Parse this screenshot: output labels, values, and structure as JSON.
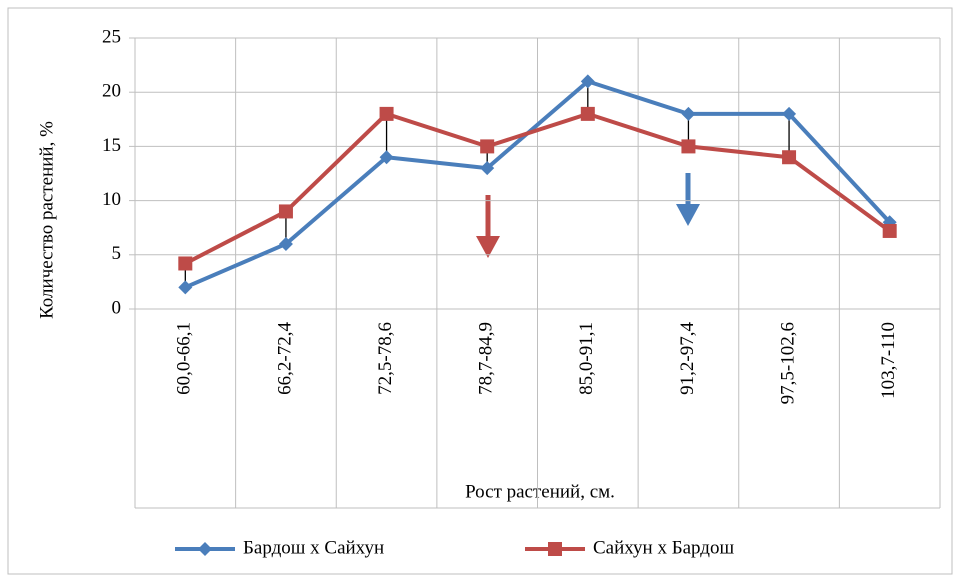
{
  "chart_data": {
    "type": "line",
    "y_label": "Количество растений,  %",
    "x_label": "Рост растений, см.",
    "categories": [
      "60,0-66,1",
      "66,2-72,4",
      "72,5-78,6",
      "78,7-84,9",
      "85,0-91,1",
      "91,2-97,4",
      "97,5-102,6",
      "103,7-110"
    ],
    "series": [
      {
        "name": "Бардош х Сайхун",
        "color": "#4a7ebb",
        "marker": "diamond",
        "values": [
          2,
          6,
          14,
          13,
          21,
          18,
          18,
          8
        ]
      },
      {
        "name": "Сайхун х Бардош",
        "color": "#be4b48",
        "marker": "square",
        "values": [
          4.2,
          9,
          18,
          15,
          18,
          15,
          14,
          7.2
        ]
      }
    ],
    "ylim": [
      0,
      25
    ],
    "yticks": [
      0,
      5,
      10,
      15,
      20,
      25
    ],
    "grid": true,
    "legend": "bottom"
  }
}
